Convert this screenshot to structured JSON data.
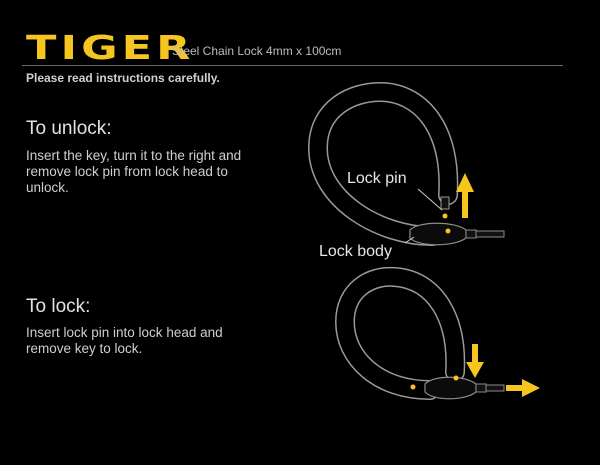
{
  "header": {
    "brand": "TIGER",
    "product": "Steel Chain Lock 4mm x 100cm",
    "notice": "Please read instructions carefully."
  },
  "unlock": {
    "heading": "To unlock:",
    "text": "Insert the key, turn it to the right and remove lock pin from lock head to unlock.",
    "label_pin": "Lock pin",
    "label_body": "Lock body"
  },
  "lock": {
    "heading": "To lock:",
    "text": "Insert lock pin into lock head and remove key to lock."
  },
  "colors": {
    "accent": "#f6c520",
    "background": "#000000",
    "text": "#d9d9d9"
  }
}
